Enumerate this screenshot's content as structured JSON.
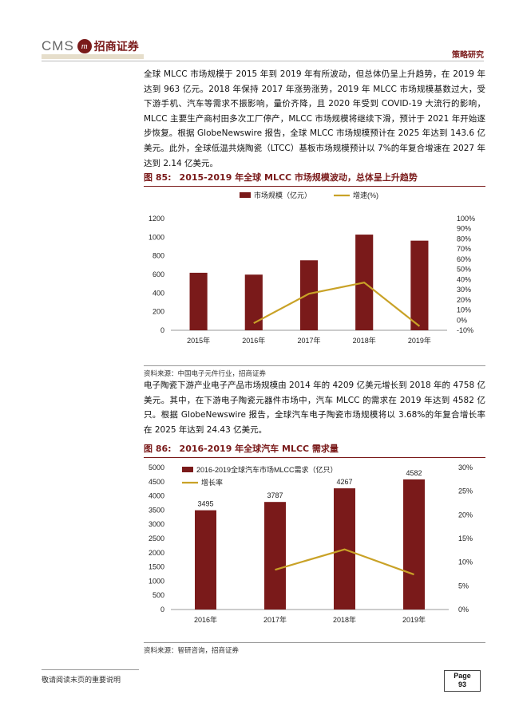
{
  "header": {
    "logo_cms": "CMS",
    "logo_mark": "m",
    "logo_text": "招商证券",
    "section": "策略研究"
  },
  "paragraphs": {
    "p1": "全球 MLCC 市场规模于 2015 年到 2019 年有所波动，但总体仍呈上升趋势，在 2019 年达到 963 亿元。2018 年保持 2017 年涨势涨势，2019 年 MLCC 市场规模基数过大，受下游手机、汽车等需求不振影响，量价齐降，且 2020 年受到 COVID-19 大流行的影响，MLCC 主要生产商村田多次工厂停产，MLCC 市场规模将继续下滑，预计于 2021 年开始逐步恢复。根据 GlobeNewswire 报告，全球 MLCC 市场规模预计在 2025 年达到 143.6 亿美元。此外，全球低温共烧陶瓷（LTCC）基板市场规模预计以 7%的年复合增速在 2027 年达到 2.14 亿美元。",
    "p2": "电子陶瓷下游产业电子产品市场规模由 2014 年的 4209 亿美元增长到 2018 年的 4758 亿美元。其中，在下游电子陶瓷元器件市场中，汽车 MLCC 的需求在 2019 年达到 4582 亿只。根据 GlobeNewswire 报告，全球汽车电子陶瓷市场规模将以 3.68%的年复合增长率在 2025 年达到 24.43 亿美元。"
  },
  "figure1": {
    "number": "图 85:",
    "title": "2015-2019 年全球 MLCC 市场规模波动，总体呈上升趋势",
    "source": "资料来源：中国电子元件行业，招商证券"
  },
  "figure2": {
    "number": "图 86:",
    "title": "2016-2019 年全球汽车 MLCC 需求量",
    "source": "资料来源：智研咨询，招商证券"
  },
  "chart_data": [
    {
      "type": "bar",
      "categories": [
        "2015年",
        "2016年",
        "2017年",
        "2018年",
        "2019年"
      ],
      "series": [
        {
          "name": "市场规模（亿元）",
          "type": "bar",
          "axis": "left",
          "color": "#7a1a1a",
          "values": [
            618,
            598,
            752,
            1028,
            963
          ]
        },
        {
          "name": "增速(%)",
          "type": "line",
          "axis": "right",
          "color": "#c9a227",
          "values": [
            null,
            -3,
            26,
            37,
            -6
          ]
        }
      ],
      "ylim": [
        0,
        1200
      ],
      "yticks": [
        "0",
        "200",
        "400",
        "600",
        "800",
        "1000",
        "1200"
      ],
      "y2lim": [
        -10,
        100
      ],
      "y2ticks": [
        "-10%",
        "0%",
        "10%",
        "20%",
        "30%",
        "40%",
        "50%",
        "60%",
        "70%",
        "80%",
        "90%",
        "100%"
      ],
      "legend": "top-center",
      "grid": false
    },
    {
      "type": "bar",
      "categories": [
        "2016年",
        "2017年",
        "2018年",
        "2019年"
      ],
      "series": [
        {
          "name": "2016-2019全球汽车市场MLCC需求（亿只）",
          "type": "bar",
          "axis": "left",
          "color": "#7a1a1a",
          "values": [
            3495,
            3787,
            4267,
            4582
          ],
          "labels": [
            "3495",
            "3787",
            "4267",
            "4582"
          ]
        },
        {
          "name": "增长率",
          "type": "line",
          "axis": "right",
          "color": "#c9a227",
          "values": [
            null,
            8.4,
            12.7,
            7.4
          ]
        }
      ],
      "ylim": [
        0,
        5000
      ],
      "yticks": [
        "0",
        "500",
        "1000",
        "1500",
        "2000",
        "2500",
        "3000",
        "3500",
        "4000",
        "4500",
        "5000"
      ],
      "y2lim": [
        0,
        30
      ],
      "y2ticks": [
        "0%",
        "5%",
        "10%",
        "15%",
        "20%",
        "25%",
        "30%"
      ],
      "legend": "top-left",
      "grid": false
    }
  ],
  "footer": {
    "disclaimer": "敬请阅读末页的重要说明",
    "page_label": "Page",
    "page_number": "93"
  }
}
